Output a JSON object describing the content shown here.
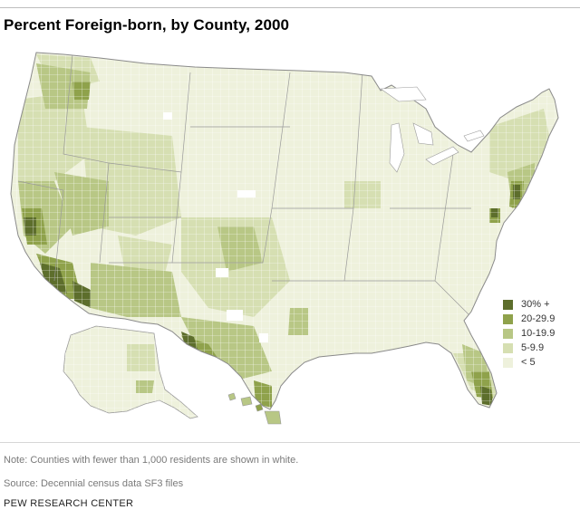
{
  "title": "Percent Foreign-born, by County, 2000",
  "note": "Note: Counties with fewer than 1,000 residents are shown in white.",
  "source": "Source: Decennial census data SF3 files",
  "brand": "PEW RESEARCH CENTER",
  "legend": {
    "items": [
      {
        "label": "30% +",
        "color": "#5d6e2c"
      },
      {
        "label": "20-29.9",
        "color": "#8fa24b"
      },
      {
        "label": "10-19.9",
        "color": "#b8c785"
      },
      {
        "label": "5-9.9",
        "color": "#d6dfb2"
      },
      {
        "label": "< 5",
        "color": "#eef1dc"
      }
    ]
  },
  "map": {
    "county_border_color": "#ffffff",
    "state_border_color": "#9a9a9a",
    "background_color": "#eef1dc"
  }
}
